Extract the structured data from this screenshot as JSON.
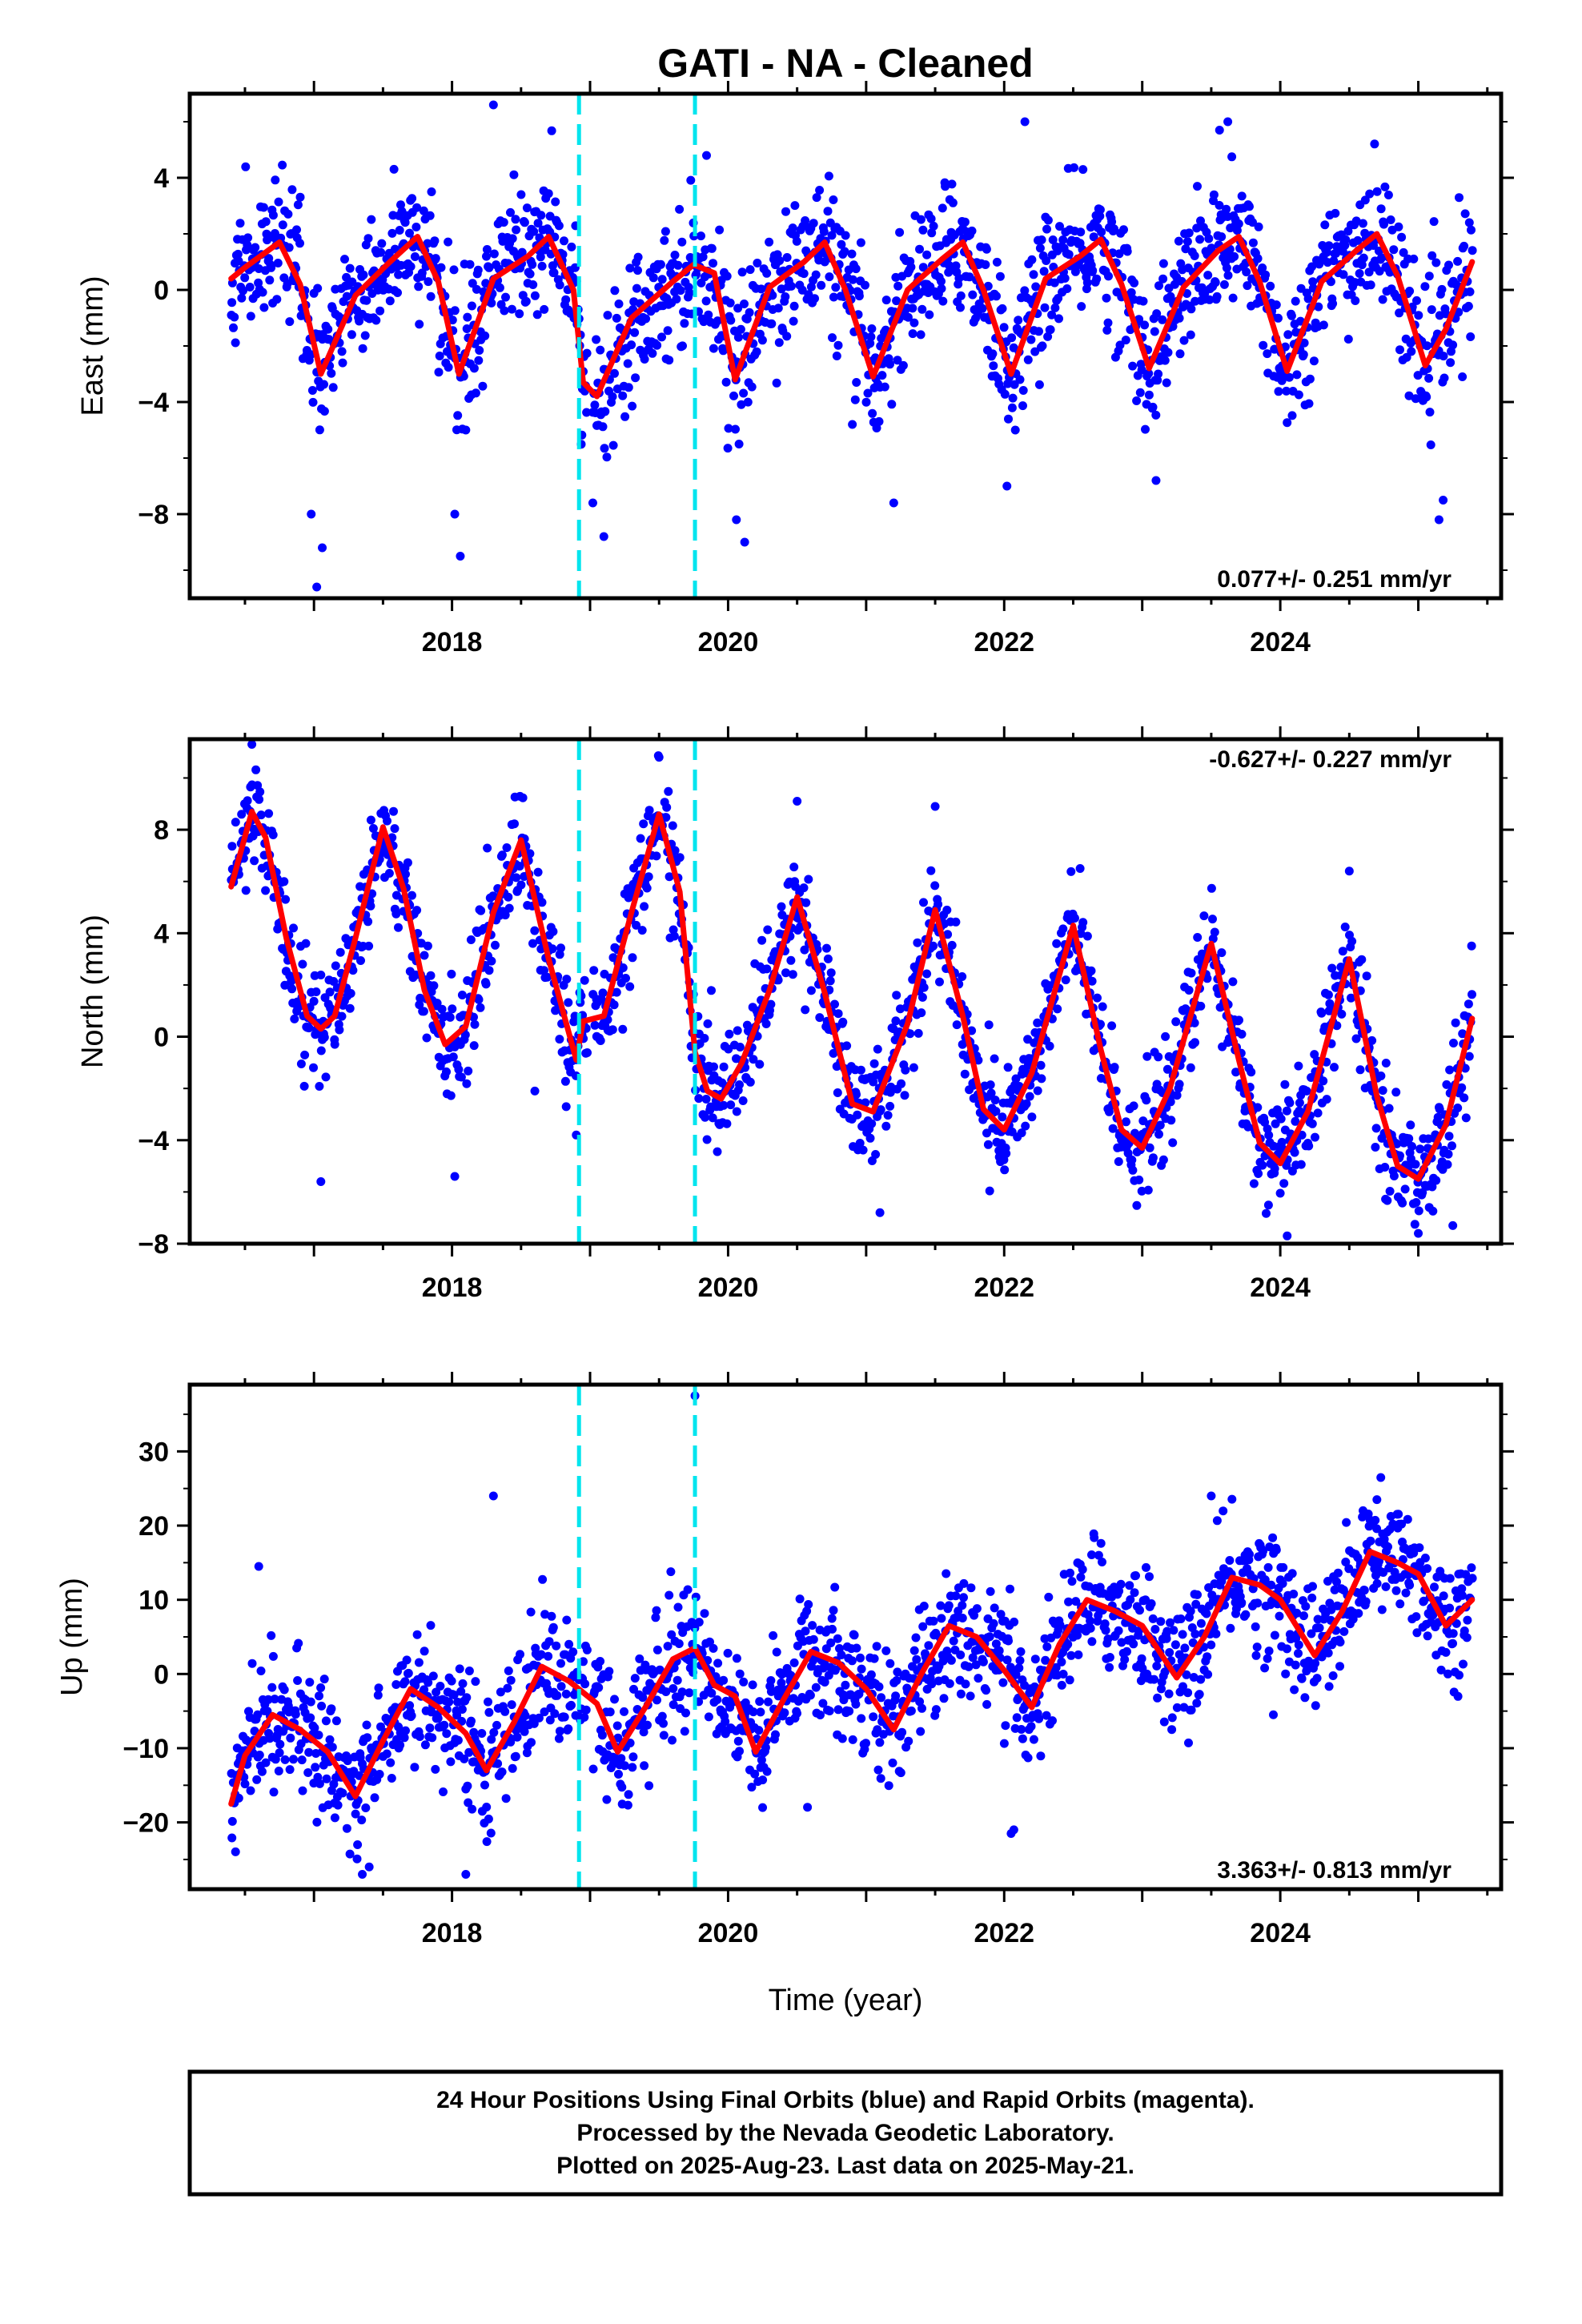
{
  "title": "GATI  - NA - Cleaned",
  "xlabel": "Time (year)",
  "colors": {
    "points": "#0000ff",
    "fit": "#ff0000",
    "breaks": "#00e5ee",
    "frame": "#000000"
  },
  "caption": {
    "line1": "24 Hour Positions Using Final Orbits (blue) and Rapid Orbits (magenta).",
    "line2": "Processed by the Nevada Geodetic Laboratory.",
    "line3": "Plotted on 2025-Aug-23. Last data on 2025-May-21."
  },
  "chart_data": [
    {
      "type": "scatter",
      "component": "east",
      "ylabel": "East (mm)",
      "rate_text": "0.077+/- 0.251 mm/yr",
      "xlim": [
        2016.1,
        2025.6
      ],
      "ylim": [
        -11,
        7
      ],
      "xticks": [
        2018,
        2020,
        2022,
        2024
      ],
      "yticks": [
        4,
        0,
        -4,
        -8
      ],
      "breaks": [
        2018.92,
        2019.76
      ],
      "data_range": [
        2016.4,
        2025.39
      ],
      "fit": {
        "x": [
          2016.4,
          2016.5,
          2016.75,
          2016.9,
          2017.05,
          2017.3,
          2017.55,
          2017.75,
          2017.9,
          2018.05,
          2018.3,
          2018.55,
          2018.7,
          2018.88,
          2018.95,
          2019.05,
          2019.3,
          2019.6,
          2019.75,
          2019.9,
          2020.05,
          2020.3,
          2020.55,
          2020.7,
          2020.85,
          2021.05,
          2021.3,
          2021.55,
          2021.7,
          2021.85,
          2022.05,
          2022.3,
          2022.55,
          2022.7,
          2022.85,
          2023.05,
          2023.3,
          2023.55,
          2023.7,
          2023.85,
          2024.05,
          2024.3,
          2024.55,
          2024.7,
          2024.85,
          2025.05,
          2025.2,
          2025.39
        ],
        "y": [
          0.4,
          0.8,
          1.7,
          0.2,
          -3.0,
          -0.2,
          1.0,
          1.9,
          0.3,
          -3.0,
          0.4,
          1.2,
          1.9,
          0.0,
          -3.3,
          -3.8,
          -1.0,
          0.3,
          0.9,
          0.6,
          -3.2,
          0.1,
          1.0,
          1.7,
          0.0,
          -3.1,
          0.0,
          1.1,
          1.7,
          0.0,
          -3.0,
          0.4,
          1.2,
          1.8,
          0.2,
          -2.8,
          0.1,
          1.4,
          1.9,
          0.3,
          -2.9,
          0.3,
          1.4,
          2.0,
          0.5,
          -2.7,
          -1.4,
          1.0
        ]
      },
      "scatter_sigma": 1.2,
      "scatter_outliers": {
        "x": [
          2016.98,
          2017.02,
          2017.06,
          2018.02,
          2018.06,
          2018.3,
          2019.02,
          2019.1,
          2020.06,
          2020.12,
          2020.9,
          2021.2,
          2022.02,
          2022.15,
          2023.1,
          2023.56,
          2023.62,
          2025.15,
          2025.18,
          2018.1
        ],
        "y": [
          -8.0,
          -10.6,
          -9.2,
          -8.0,
          -9.5,
          6.6,
          -7.6,
          -8.8,
          -8.2,
          -9.0,
          -4.8,
          -7.6,
          -7.0,
          6.0,
          -6.8,
          5.7,
          6.0,
          -8.2,
          -7.5,
          -5.0
        ]
      }
    },
    {
      "type": "scatter",
      "component": "north",
      "ylabel": "North (mm)",
      "rate_text": "-0.627+/- 0.227 mm/yr",
      "xlim": [
        2016.1,
        2025.6
      ],
      "ylim": [
        -8,
        11.5
      ],
      "xticks": [
        2018,
        2020,
        2022,
        2024
      ],
      "yticks": [
        8,
        4,
        0,
        -4,
        -8
      ],
      "breaks": [
        2018.92,
        2019.76
      ],
      "data_range": [
        2016.4,
        2025.39
      ],
      "fit": {
        "x": [
          2016.4,
          2016.55,
          2016.65,
          2016.8,
          2016.95,
          2017.05,
          2017.15,
          2017.3,
          2017.5,
          2017.65,
          2017.8,
          2017.95,
          2018.1,
          2018.3,
          2018.5,
          2018.7,
          2018.9,
          2018.95,
          2019.1,
          2019.3,
          2019.5,
          2019.65,
          2019.76,
          2019.85,
          2019.95,
          2020.1,
          2020.3,
          2020.5,
          2020.7,
          2020.9,
          2021.05,
          2021.3,
          2021.5,
          2021.7,
          2021.85,
          2022.0,
          2022.2,
          2022.5,
          2022.7,
          2022.85,
          2023.0,
          2023.2,
          2023.5,
          2023.7,
          2023.85,
          2024.0,
          2024.2,
          2024.5,
          2024.7,
          2024.85,
          2025.0,
          2025.2,
          2025.39
        ],
        "y": [
          5.8,
          8.7,
          7.7,
          3.8,
          0.8,
          0.3,
          0.8,
          3.8,
          8.1,
          5.7,
          1.8,
          -0.3,
          0.4,
          4.8,
          7.6,
          3.0,
          -0.9,
          0.6,
          0.8,
          4.8,
          8.6,
          5.6,
          -0.6,
          -2.1,
          -2.4,
          -1.0,
          1.8,
          5.4,
          1.7,
          -2.6,
          -2.9,
          0.5,
          4.9,
          0.8,
          -2.8,
          -3.6,
          -1.4,
          4.3,
          -0.5,
          -3.6,
          -4.3,
          -2.0,
          3.6,
          -0.9,
          -4.1,
          -4.9,
          -2.9,
          3.0,
          -2.3,
          -5.0,
          -5.5,
          -3.4,
          0.7
        ]
      },
      "scatter_sigma": 1.05,
      "scatter_outliers": {
        "x": [
          2016.55,
          2017.05,
          2018.02,
          2018.6,
          2018.9,
          2019.5,
          2020.5,
          2021.1,
          2021.5,
          2022.55,
          2024.05,
          2024.5,
          2025.0,
          2025.25
        ],
        "y": [
          11.3,
          -5.6,
          -5.4,
          -2.1,
          -3.8,
          10.8,
          9.1,
          -6.8,
          8.9,
          6.5,
          -7.7,
          6.4,
          -7.6,
          -7.3
        ]
      }
    },
    {
      "type": "scatter",
      "component": "up",
      "ylabel": "Up (mm)",
      "rate_text": "3.363+/- 0.813 mm/yr",
      "xlim": [
        2016.1,
        2025.6
      ],
      "ylim": [
        -29,
        39
      ],
      "xticks": [
        2018,
        2020,
        2022,
        2024
      ],
      "yticks": [
        30,
        20,
        10,
        0,
        -10,
        -20
      ],
      "breaks": [
        2018.92,
        2019.76
      ],
      "data_range": [
        2016.4,
        2025.39
      ],
      "fit": {
        "x": [
          2016.4,
          2016.5,
          2016.7,
          2016.9,
          2017.1,
          2017.3,
          2017.5,
          2017.7,
          2017.9,
          2018.1,
          2018.25,
          2018.45,
          2018.65,
          2018.85,
          2019.05,
          2019.2,
          2019.4,
          2019.6,
          2019.76,
          2019.9,
          2020.05,
          2020.2,
          2020.4,
          2020.6,
          2020.8,
          2021.0,
          2021.2,
          2021.4,
          2021.6,
          2021.8,
          2022.0,
          2022.2,
          2022.4,
          2022.6,
          2022.8,
          2023.0,
          2023.25,
          2023.45,
          2023.65,
          2023.85,
          2024.0,
          2024.25,
          2024.45,
          2024.65,
          2024.85,
          2025.0,
          2025.2,
          2025.39
        ],
        "y": [
          -17.5,
          -11.0,
          -5.5,
          -7.5,
          -10.5,
          -16.5,
          -9.0,
          -2.0,
          -4.5,
          -8.0,
          -13.0,
          -6.5,
          1.0,
          -1.0,
          -4.0,
          -10.5,
          -4.5,
          2.0,
          3.5,
          -1.5,
          -3.0,
          -10.5,
          -3.5,
          3.0,
          1.5,
          -2.0,
          -7.5,
          0.0,
          6.5,
          5.0,
          0.5,
          -4.5,
          4.0,
          10.0,
          8.5,
          6.5,
          -0.5,
          5.0,
          13.0,
          12.0,
          10.0,
          2.5,
          8.5,
          16.5,
          15.0,
          13.5,
          6.5,
          10.0
        ]
      },
      "scatter_sigma": 4.2,
      "scatter_outliers": {
        "x": [
          2016.6,
          2017.35,
          2017.4,
          2018.1,
          2018.3,
          2019.76,
          2020.25,
          2022.05,
          2022.07,
          2023.5,
          2023.95,
          2024.7
        ],
        "y": [
          14.5,
          -27.0,
          -26.0,
          -27.0,
          24.0,
          37.5,
          -18.0,
          -21.5,
          -21.0,
          24.0,
          -5.5,
          23.5
        ]
      }
    }
  ]
}
